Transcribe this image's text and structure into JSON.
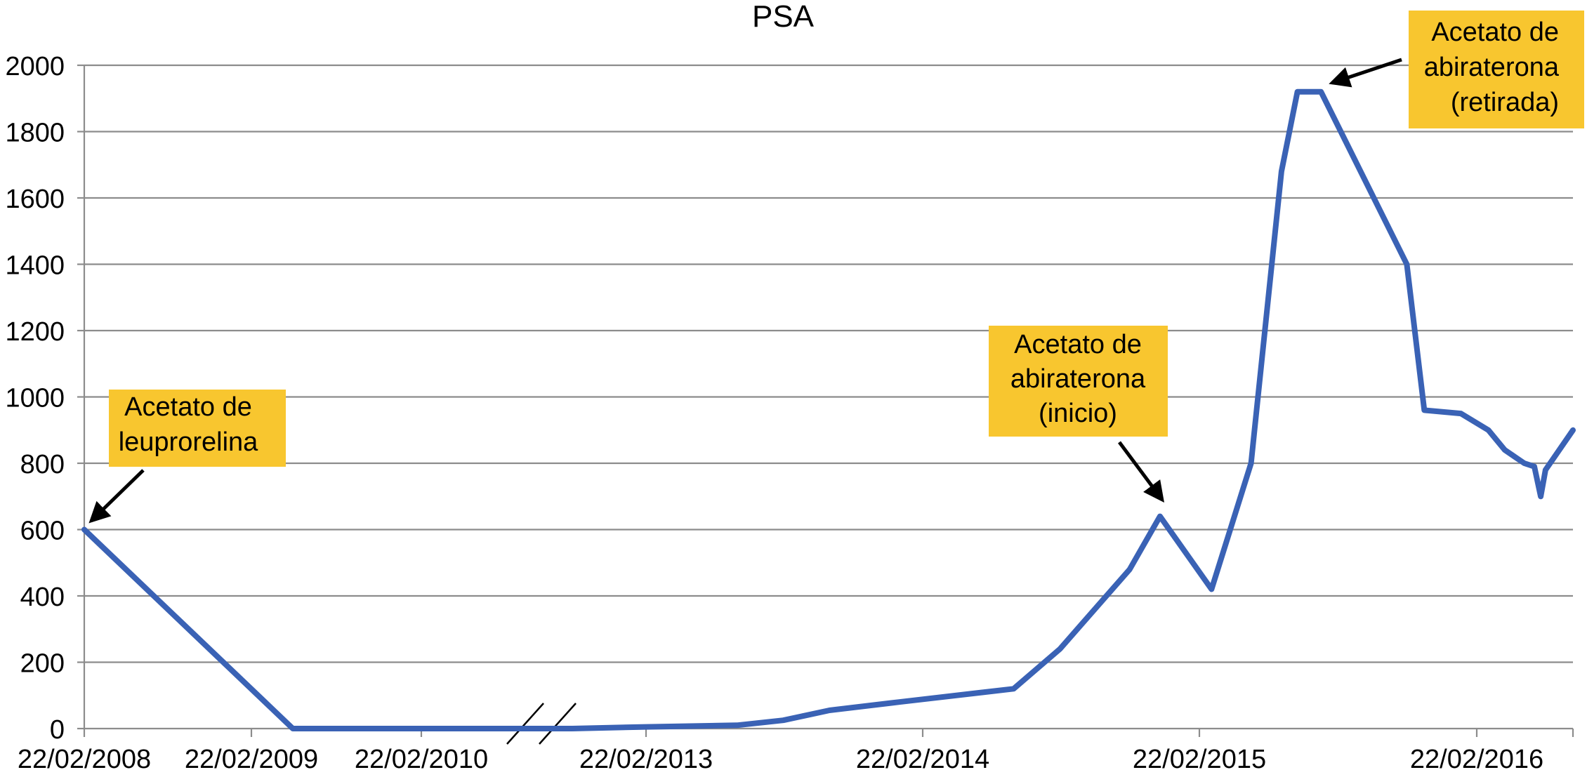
{
  "chart_data": {
    "type": "line",
    "title": "PSA",
    "xlabel": "",
    "ylabel": "",
    "ylim": [
      0,
      2000
    ],
    "yticks": [
      0,
      200,
      400,
      600,
      800,
      1000,
      1200,
      1400,
      1600,
      1800,
      2000
    ],
    "xticks": [
      "22/02/2008",
      "22/02/2009",
      "22/02/2010",
      "22/02/2013",
      "22/02/2014",
      "22/02/2015",
      "22/02/2016"
    ],
    "grid": "horizontal",
    "axis_break": "between 22/02/2010 and 22/02/2013",
    "series": [
      {
        "color": "#3a62b5",
        "points": [
          {
            "x": "22/02/2008",
            "y": 600
          },
          {
            "x": "22/05/2009",
            "y": 0
          },
          {
            "x": "22/02/2010",
            "y": 0
          },
          {
            "x": "01/12/2010",
            "y": 0
          },
          {
            "x": "22/06/2012",
            "y": 0
          },
          {
            "x": "22/02/2013",
            "y": 5
          },
          {
            "x": "22/06/2013",
            "y": 10
          },
          {
            "x": "22/08/2013",
            "y": 25
          },
          {
            "x": "22/10/2013",
            "y": 55
          },
          {
            "x": "22/01/2014",
            "y": 80
          },
          {
            "x": "22/06/2014",
            "y": 120
          },
          {
            "x": "22/08/2014",
            "y": 240
          },
          {
            "x": "22/11/2014",
            "y": 480
          },
          {
            "x": "01/01/2015",
            "y": 640
          },
          {
            "x": "10/03/2015",
            "y": 420
          },
          {
            "x": "01/05/2015",
            "y": 800
          },
          {
            "x": "10/06/2015",
            "y": 1680
          },
          {
            "x": "01/07/2015",
            "y": 1920
          },
          {
            "x": "01/08/2015",
            "y": 1920
          },
          {
            "x": "22/11/2015",
            "y": 1400
          },
          {
            "x": "15/12/2015",
            "y": 960
          },
          {
            "x": "01/02/2016",
            "y": 950
          },
          {
            "x": "15/03/2016",
            "y": 900
          },
          {
            "x": "15/04/2016",
            "y": 840
          },
          {
            "x": "22/05/2016",
            "y": 800
          },
          {
            "x": "10/06/2016",
            "y": 790
          },
          {
            "x": "22/06/2016",
            "y": 700
          },
          {
            "x": "01/07/2016",
            "y": 780
          },
          {
            "x": "22/08/2016",
            "y": 900
          }
        ]
      }
    ],
    "annotations": [
      {
        "lines": [
          "Acetato de",
          "leuprorelina"
        ],
        "x": "22/02/2008",
        "y": 600,
        "box_color": "#f8c62f"
      },
      {
        "lines": [
          "Acetato de",
          "abiraterona",
          "(inicio)"
        ],
        "x": "01/01/2015",
        "y": 640,
        "box_color": "#f8c62f"
      },
      {
        "lines": [
          "Acetato de",
          "abiraterona",
          "(retirada)"
        ],
        "x": "01/08/2015",
        "y": 1920,
        "box_color": "#f8c62f"
      }
    ]
  }
}
